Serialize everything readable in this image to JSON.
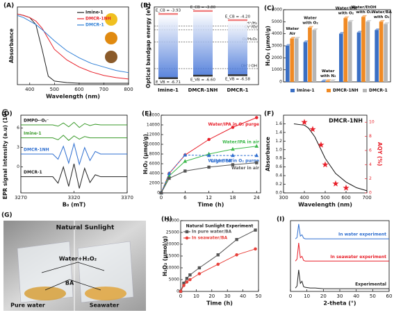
{
  "chart_data": [
    {
      "type": "line",
      "panel": "(A)",
      "xlabel": "Wavelength (nm)",
      "ylabel": "Absorbance",
      "xlim": [
        350,
        800
      ],
      "xticks": [
        400,
        500,
        600,
        700,
        800
      ],
      "ylim": [
        0,
        1.1
      ],
      "legend": "upper right",
      "x": [
        350,
        375,
        400,
        425,
        450,
        475,
        500,
        550,
        600,
        650,
        700,
        750,
        800
      ],
      "series": [
        {
          "name": "Imine-1",
          "color": "#222222",
          "values": [
            1.0,
            0.98,
            0.95,
            0.85,
            0.5,
            0.12,
            0.05,
            0.03,
            0.02,
            0.02,
            0.02,
            0.02,
            0.02
          ]
        },
        {
          "name": "DMCR-1NH",
          "color": "#e8202a",
          "values": [
            1.0,
            0.98,
            0.95,
            0.9,
            0.8,
            0.65,
            0.5,
            0.35,
            0.25,
            0.18,
            0.13,
            0.1,
            0.08
          ]
        },
        {
          "name": "DMCR-1",
          "color": "#2f7fd6",
          "values": [
            0.98,
            0.95,
            0.9,
            0.85,
            0.78,
            0.7,
            0.62,
            0.48,
            0.38,
            0.3,
            0.25,
            0.2,
            0.17
          ]
        }
      ]
    },
    {
      "type": "band",
      "panel": "(B)",
      "ylabel": "Optical bandgap energy (eV)",
      "ylim": [
        -7,
        -3.6
      ],
      "categories": [
        "Imine-1",
        "DMCR-1NH",
        "DMCR-1"
      ],
      "ecb": [
        -3.93,
        -3.8,
        -4.2
      ],
      "ecb_labels": [
        "E_CB = -3.93",
        "E_CB = -3.80",
        "E_CB = -4.20"
      ],
      "evb": [
        -6.71,
        -6.6,
        -6.58
      ],
      "evb_labels": [
        "E_VB = -6.71",
        "E_VB = -6.60",
        "E_VB = -6.58"
      ],
      "levels": [
        {
          "label": "H⁺/H₂",
          "value": -4.44
        },
        {
          "label": "·O₂⁻/O₂",
          "value": -4.6
        },
        {
          "label": "O₂/H₂O₂",
          "value": -5.14
        },
        {
          "label": "OH⁻/·OH",
          "value": -6.3
        }
      ]
    },
    {
      "type": "bar",
      "panel": "(C)",
      "ylabel": "H₂O₂ (μmol/g)",
      "ylim": [
        0,
        6000
      ],
      "yticks": [
        0,
        1000,
        2000,
        3000,
        4000,
        5000,
        6000
      ],
      "categories": [
        [
          "Water",
          "Air"
        ],
        [
          "Water",
          "with O₂"
        ],
        [
          "Water",
          "with N₂"
        ],
        [
          "Water/IPA",
          "with O₂"
        ],
        [
          "Water/EtOH",
          "with O₂"
        ],
        [
          "Water/BA",
          "with O₂"
        ]
      ],
      "series": [
        {
          "name": "Imine-1",
          "color": "#3a6fc4",
          "values": [
            3000,
            3300,
            60,
            4000,
            4100,
            4300
          ]
        },
        {
          "name": "DMCR-1NH",
          "color": "#f08a24",
          "values": [
            3600,
            4500,
            80,
            5300,
            5400,
            5000
          ]
        },
        {
          "name": "DMCR-1",
          "color": "#b5b5b5",
          "values": [
            3600,
            4300,
            70,
            5000,
            5000,
            4800
          ]
        }
      ]
    },
    {
      "type": "line",
      "panel": "(D)",
      "xlabel": "B₀ (mT)",
      "ylabel": "EPR signal intensity (a.u) (10⁴)",
      "xlim": [
        3270,
        3370
      ],
      "xticks": [
        3270,
        3320,
        3370
      ],
      "ylim": [
        -4,
        8
      ],
      "yticks": [
        0,
        3,
        6
      ],
      "legend": "inline",
      "x": [
        3270,
        3275,
        3280,
        3285,
        3290,
        3295,
        3300,
        3305,
        3310,
        3315,
        3320,
        3325,
        3330,
        3335,
        3340,
        3345,
        3350,
        3355,
        3360,
        3365,
        3370
      ],
      "series": [
        {
          "name": "DMPO-·O₂⁻",
          "color": "#3a9a2a",
          "label_color": "#111111",
          "values": [
            6.5,
            6.5,
            6.5,
            6.5,
            6.5,
            6.5,
            6.5,
            6.3,
            6.8,
            6.2,
            6.9,
            6.1,
            6.7,
            6.4,
            6.6,
            6.5,
            6.5,
            6.5,
            6.5,
            6.5,
            6.5
          ]
        },
        {
          "name": "Imine-1",
          "color": "#3a9a2a",
          "values": [
            4.5,
            4.5,
            4.5,
            4.5,
            4.5,
            4.5,
            4.5,
            4.2,
            4.9,
            4.1,
            4.8,
            4.3,
            4.7,
            4.5,
            4.5,
            4.5,
            4.5,
            4.5,
            4.5,
            4.5,
            4.5
          ]
        },
        {
          "name": "DMCR-1NH",
          "color": "#2f6fd0",
          "values": [
            2,
            2,
            2,
            2,
            2,
            2,
            2,
            1.2,
            3.2,
            0.6,
            3.6,
            0.4,
            3.0,
            1.0,
            2.4,
            2,
            2,
            2,
            2,
            2,
            2
          ]
        },
        {
          "name": "DMCR-1",
          "color": "#222222",
          "values": [
            -1.5,
            -1.5,
            -1.5,
            -1.5,
            -1.5,
            -1.5,
            -1.5,
            -2.5,
            0,
            -3,
            0.5,
            -3.3,
            -0.2,
            -2.4,
            -1.2,
            -1.5,
            -1.5,
            -1.5,
            -1.5,
            -1.5,
            -1.5
          ]
        }
      ]
    },
    {
      "type": "line",
      "panel": "(E)",
      "xlabel": "Time (h)",
      "ylabel": "H₂O₂ (μmol/g)",
      "xlim": [
        0,
        25
      ],
      "xticks": [
        0,
        6,
        12,
        18,
        24
      ],
      "ylim": [
        0,
        16000
      ],
      "yticks": [
        0,
        2000,
        4000,
        6000,
        8000,
        10000,
        12000,
        14000,
        16000
      ],
      "legend": "inline",
      "annotation": "Light off",
      "x": [
        0,
        2,
        6,
        12,
        18,
        24
      ],
      "series": [
        {
          "name": "Water/IPA in O₂ purge",
          "color": "#e8202a",
          "marker": "circle",
          "values": [
            0,
            4000,
            7800,
            11000,
            13500,
            15500
          ]
        },
        {
          "name": "Water/IPA in air",
          "color": "#3cb84a",
          "marker": "triangle",
          "values": [
            0,
            3500,
            6500,
            8000,
            9000,
            9600
          ]
        },
        {
          "name": "Water/IPA in O₂ purge",
          "color": "#2f6fd0",
          "marker": "triangle",
          "dash": true,
          "values": [
            0,
            4000,
            7800,
            7700,
            7700,
            7700
          ]
        },
        {
          "name": "Water in air",
          "color": "#555555",
          "marker": "square",
          "values": [
            0,
            3000,
            4500,
            5300,
            5800,
            6200
          ]
        }
      ]
    },
    {
      "type": "line",
      "panel": "(F)",
      "title": "DMCR-1NH",
      "xlabel": "Wavelength (nm)",
      "ylabel": "Absorbance",
      "y2label": "AQY (%)",
      "xlim": [
        300,
        700
      ],
      "xticks": [
        300,
        400,
        500,
        600,
        700
      ],
      "ylim": [
        0,
        1.8
      ],
      "yticks": [
        {
          "value": 0,
          "label": "0.0"
        },
        {
          "value": 0.2,
          "label": "0.2"
        },
        {
          "value": 0.4,
          "label": "0.4"
        },
        {
          "value": 0.6,
          "label": "0.6"
        },
        {
          "value": 0.8,
          "label": "0.8"
        },
        {
          "value": 1.0,
          "label": "1.0"
        },
        {
          "value": 1.2,
          "label": "1.2"
        },
        {
          "value": 1.4,
          "label": "1.4"
        },
        {
          "value": 1.6,
          "label": "1.6"
        }
      ],
      "y2lim": [
        0,
        11
      ],
      "y2ticks": [
        0,
        2,
        4,
        6,
        8,
        10
      ],
      "series": [
        {
          "color": "#111111",
          "x": [
            350,
            380,
            400,
            420,
            450,
            480,
            500,
            550,
            600,
            650,
            700
          ],
          "values": [
            1.6,
            1.58,
            1.57,
            1.5,
            1.3,
            1.0,
            0.8,
            0.45,
            0.25,
            0.12,
            0.05
          ]
        },
        {
          "color": "#e8202a",
          "axis": "y2",
          "line": false,
          "marker": "star",
          "x": [
            400,
            440,
            480,
            500,
            550,
            600
          ],
          "values": [
            10,
            9,
            6.8,
            4,
            1.3,
            0.7
          ]
        }
      ]
    },
    {
      "type": "image",
      "panel": "(G)",
      "title": "Natural Sunlight",
      "labels": [
        "Water+H₂O₂",
        "BA",
        "Pure water",
        "Seawater"
      ]
    },
    {
      "type": "line",
      "panel": "(H)",
      "title": "Natural Sunlight Experiment",
      "xlabel": "Time (h)",
      "ylabel": "H₂O₂ (μmol/g)",
      "xlim": [
        0,
        50
      ],
      "xticks": [
        0,
        10,
        20,
        30,
        40,
        50
      ],
      "ylim": [
        0,
        30000
      ],
      "yticks": [
        0,
        5000,
        10000,
        15000,
        20000,
        25000,
        30000
      ],
      "legend": "upper left",
      "x": [
        0,
        2,
        4,
        6,
        12,
        24,
        36,
        48
      ],
      "series": [
        {
          "name": "In pure water/BA",
          "color": "#555555",
          "marker": "square",
          "values": [
            0,
            3500,
            5500,
            7000,
            10000,
            15500,
            22000,
            26000
          ]
        },
        {
          "name": "In seawater/BA",
          "color": "#e8403a",
          "marker": "circle",
          "values": [
            0,
            2500,
            4000,
            5000,
            7500,
            11500,
            15500,
            18000
          ]
        }
      ]
    },
    {
      "type": "line",
      "panel": "(I)",
      "xlabel": "2-theta (°)",
      "xlim": [
        0,
        60
      ],
      "xticks": [
        0,
        10,
        20,
        30,
        40,
        50,
        60
      ],
      "ylim": [
        0,
        105
      ],
      "legend": "inline",
      "x": [
        3,
        4,
        5,
        6,
        7,
        8,
        9,
        12,
        15,
        20,
        25,
        30,
        40,
        50,
        60
      ],
      "series": [
        {
          "name": "In water experiment",
          "color": "#2f6fd0",
          "values": [
            78,
            80,
            100,
            82,
            84,
            79,
            78,
            78,
            78,
            78,
            78,
            78,
            78,
            78,
            78
          ]
        },
        {
          "name": "In seawater experiment",
          "color": "#e8202a",
          "values": [
            45,
            48,
            72,
            50,
            52,
            46,
            45,
            45,
            45,
            45,
            45,
            45,
            45,
            45,
            45
          ]
        },
        {
          "name": "Experimental",
          "color": "#222222",
          "values": [
            5,
            8,
            32,
            12,
            15,
            7,
            6,
            5,
            5,
            4,
            4,
            4,
            4,
            4,
            4
          ]
        }
      ]
    }
  ]
}
